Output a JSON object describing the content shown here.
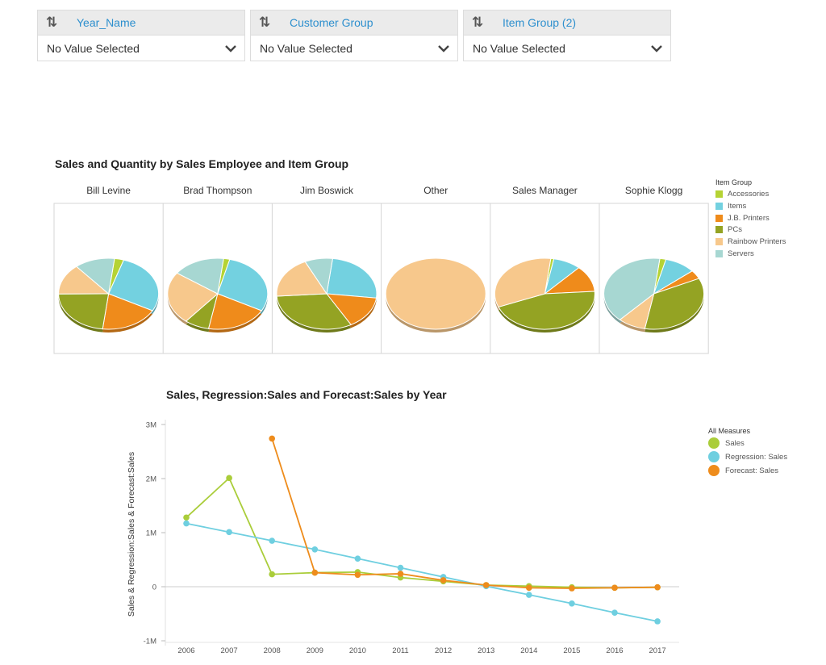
{
  "filters": [
    {
      "name": "Year_Name",
      "value": "No Value Selected"
    },
    {
      "name": "Customer Group",
      "value": "No Value Selected"
    },
    {
      "name": "Item Group (2)",
      "value": "No Value Selected"
    }
  ],
  "colors": {
    "Accessories": "#b5d334",
    "Items": "#73d1e0",
    "J.B. Printers": "#ef8b1b",
    "PCs": "#94a323",
    "Rainbow Printers": "#f7c88c",
    "Servers": "#a7d7d2"
  },
  "chart_data": [
    {
      "type": "pie",
      "title": "Sales and Quantity by Sales Employee and Item Group",
      "legend_title": "Item Group",
      "legend_position": "right",
      "categories": [
        "Accessories",
        "Items",
        "J.B. Printers",
        "PCs",
        "Rainbow Printers",
        "Servers"
      ],
      "panels": [
        {
          "name": "Bill Levine",
          "values": [
            3,
            28,
            19,
            23,
            14,
            13
          ]
        },
        {
          "name": "Brad Thompson",
          "values": [
            2,
            29,
            20,
            8,
            24,
            17
          ]
        },
        {
          "name": "Jim Boswick",
          "values": [
            0,
            25,
            15,
            32,
            19,
            9
          ]
        },
        {
          "name": "Other",
          "values": [
            0,
            0,
            0,
            0,
            100,
            0
          ]
        },
        {
          "name": "Sales Manager",
          "values": [
            1,
            9,
            12,
            45,
            33,
            0
          ]
        },
        {
          "name": "Sophie Klogg",
          "values": [
            2,
            10,
            4,
            35,
            9,
            40
          ]
        }
      ]
    },
    {
      "type": "line",
      "title": "Sales, Regression:Sales and Forecast:Sales by Year",
      "ylabel": "Sales & Regression:Sales & Forecast:Sales",
      "legend_title": "All Measures",
      "legend_position": "right",
      "ylim": [
        -1000000,
        3000000
      ],
      "yticks": [
        -1000000,
        0,
        1000000,
        2000000,
        3000000
      ],
      "ytick_labels": [
        "-1M",
        "0",
        "1M",
        "2M",
        "3M"
      ],
      "x": [
        "2006",
        "2007",
        "2008",
        "2009",
        "2010",
        "2011",
        "2012",
        "2013",
        "2014",
        "2015",
        "2016",
        "2017"
      ],
      "series": [
        {
          "name": "Sales",
          "color": "#aacd3a",
          "values": [
            1280000,
            2010000,
            230000,
            260000,
            270000,
            170000,
            100000,
            30000,
            10000,
            -10000,
            -20000,
            -10000
          ]
        },
        {
          "name": "Regression: Sales",
          "color": "#6fcfe0",
          "values": [
            1170000,
            1010000,
            850000,
            690000,
            520000,
            350000,
            180000,
            10000,
            -150000,
            -310000,
            -480000,
            -640000
          ]
        },
        {
          "name": "Forecast: Sales",
          "color": "#ee8c1c",
          "values": [
            null,
            null,
            2740000,
            260000,
            220000,
            240000,
            120000,
            30000,
            -20000,
            -30000,
            -20000,
            -10000
          ]
        }
      ]
    }
  ]
}
